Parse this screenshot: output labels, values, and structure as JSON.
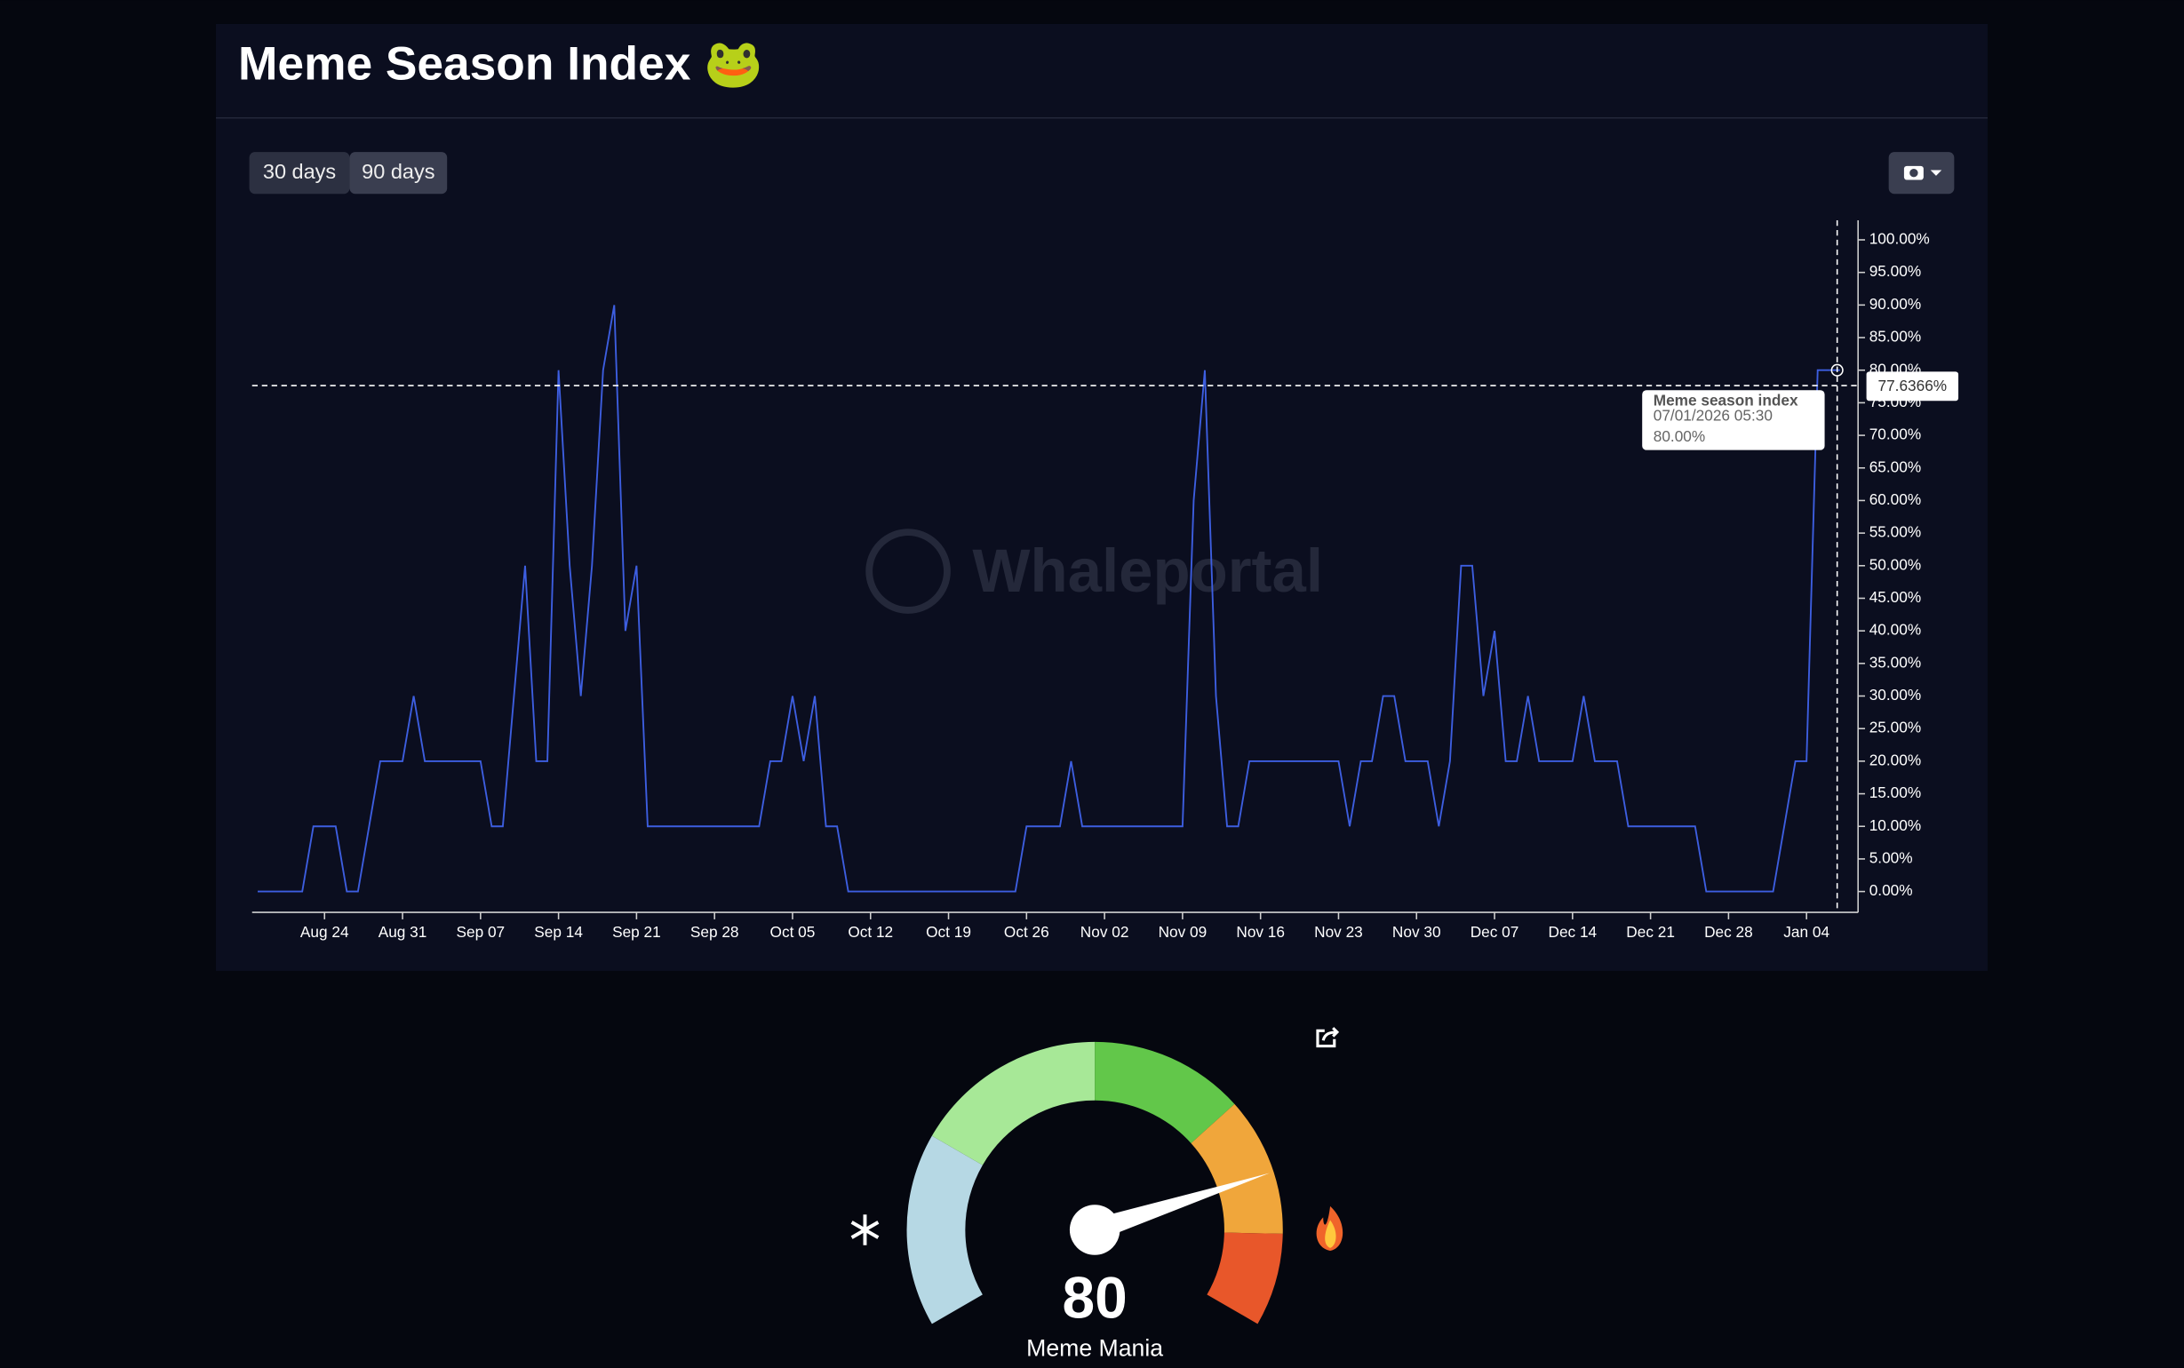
{
  "header": {
    "title": "Meme Season Index 🐸"
  },
  "buttons": [
    "30 days",
    "90 days"
  ],
  "watermark": "Whaleportal",
  "chart_data": {
    "type": "line",
    "categories": [
      null,
      null,
      null,
      null,
      null,
      null,
      "Aug 24",
      null,
      null,
      null,
      null,
      null,
      null,
      "Aug 31",
      null,
      null,
      null,
      null,
      null,
      null,
      "Sep 07",
      null,
      null,
      null,
      null,
      null,
      null,
      "Sep 14",
      null,
      null,
      null,
      null,
      null,
      null,
      "Sep 21",
      null,
      null,
      null,
      null,
      null,
      null,
      "Sep 28",
      null,
      null,
      null,
      null,
      null,
      null,
      "Oct 05",
      null,
      null,
      null,
      null,
      null,
      null,
      "Oct 12",
      null,
      null,
      null,
      null,
      null,
      null,
      "Oct 19",
      null,
      null,
      null,
      null,
      null,
      null,
      "Oct 26",
      null,
      null,
      null,
      null,
      null,
      null,
      "Nov 02",
      null,
      null,
      null,
      null,
      null,
      null,
      "Nov 09",
      null,
      null,
      null,
      null,
      null,
      null,
      "Nov 16",
      null,
      null,
      null,
      null,
      null,
      null,
      "Nov 23",
      null,
      null,
      null,
      null,
      null,
      null,
      "Nov 30",
      null,
      null,
      null,
      null,
      null,
      null,
      "Dec 07",
      null,
      null,
      null,
      null,
      null,
      null,
      "Dec 14",
      null,
      null,
      null,
      null,
      null,
      null,
      "Dec 21",
      null,
      null,
      null,
      null,
      null,
      null,
      "Dec 28",
      null,
      null,
      null,
      null,
      null,
      null,
      "Jan 04",
      null,
      null,
      null
    ],
    "series": [
      {
        "name": "Meme season index",
        "color": "#3d5ee0",
        "values": [
          0,
          0,
          0,
          0,
          0,
          10,
          10,
          10,
          0,
          0,
          10,
          20,
          20,
          20,
          30,
          20,
          20,
          20,
          20,
          20,
          20,
          10,
          10,
          30,
          50,
          20,
          20,
          80,
          50,
          30,
          50,
          80,
          90,
          40,
          50,
          10,
          10,
          10,
          10,
          10,
          10,
          10,
          10,
          10,
          10,
          10,
          20,
          20,
          30,
          20,
          30,
          10,
          10,
          0,
          0,
          0,
          0,
          0,
          0,
          0,
          0,
          0,
          0,
          0,
          0,
          0,
          0,
          0,
          0,
          10,
          10,
          10,
          10,
          20,
          10,
          10,
          10,
          10,
          10,
          10,
          10,
          10,
          10,
          10,
          60,
          80,
          30,
          10,
          10,
          20,
          20,
          20,
          20,
          20,
          20,
          20,
          20,
          20,
          10,
          20,
          20,
          30,
          30,
          20,
          20,
          20,
          10,
          20,
          50,
          50,
          30,
          40,
          20,
          20,
          30,
          20,
          20,
          20,
          20,
          30,
          20,
          20,
          20,
          10,
          10,
          10,
          10,
          10,
          10,
          10,
          0,
          0,
          0,
          0,
          0,
          0,
          0,
          10,
          20,
          20,
          80,
          80,
          80
        ]
      }
    ],
    "ylim": [
      -3.2,
      103
    ],
    "yticks": [
      {
        "value": 0,
        "label": "0.00%"
      },
      {
        "value": 5,
        "label": "5.00%"
      },
      {
        "value": 10,
        "label": "10.00%"
      },
      {
        "value": 15,
        "label": "15.00%"
      },
      {
        "value": 20,
        "label": "20.00%"
      },
      {
        "value": 25,
        "label": "25.00%"
      },
      {
        "value": 30,
        "label": "30.00%"
      },
      {
        "value": 35,
        "label": "35.00%"
      },
      {
        "value": 40,
        "label": "40.00%"
      },
      {
        "value": 45,
        "label": "45.00%"
      },
      {
        "value": 50,
        "label": "50.00%"
      },
      {
        "value": 55,
        "label": "55.00%"
      },
      {
        "value": 60,
        "label": "60.00%"
      },
      {
        "value": 65,
        "label": "65.00%"
      },
      {
        "value": 70,
        "label": "70.00%"
      },
      {
        "value": 75,
        "label": "75.00%"
      },
      {
        "value": 80,
        "label": "80.00%"
      },
      {
        "value": 85,
        "label": "85.00%"
      },
      {
        "value": 90,
        "label": "90.00%"
      },
      {
        "value": 95,
        "label": "95.00%"
      },
      {
        "value": 100,
        "label": "100.00%"
      }
    ],
    "crosshair": {
      "value": 77.6366,
      "label": "77.6366%"
    },
    "tooltip": {
      "x_label": "07/01/2026 05:30",
      "value": 80,
      "value_label": "80.00%"
    }
  },
  "gauge": {
    "value": 80,
    "label": "Meme Mania",
    "range": [
      0,
      100
    ],
    "segments": [
      {
        "to": 25,
        "color": "#b6d8e4"
      },
      {
        "to": 50,
        "color": "#a7e897"
      },
      {
        "to": 70,
        "color": "#62c74a"
      },
      {
        "to": 88,
        "color": "#f0a63b"
      },
      {
        "to": 100,
        "color": "#e8572a"
      }
    ]
  }
}
